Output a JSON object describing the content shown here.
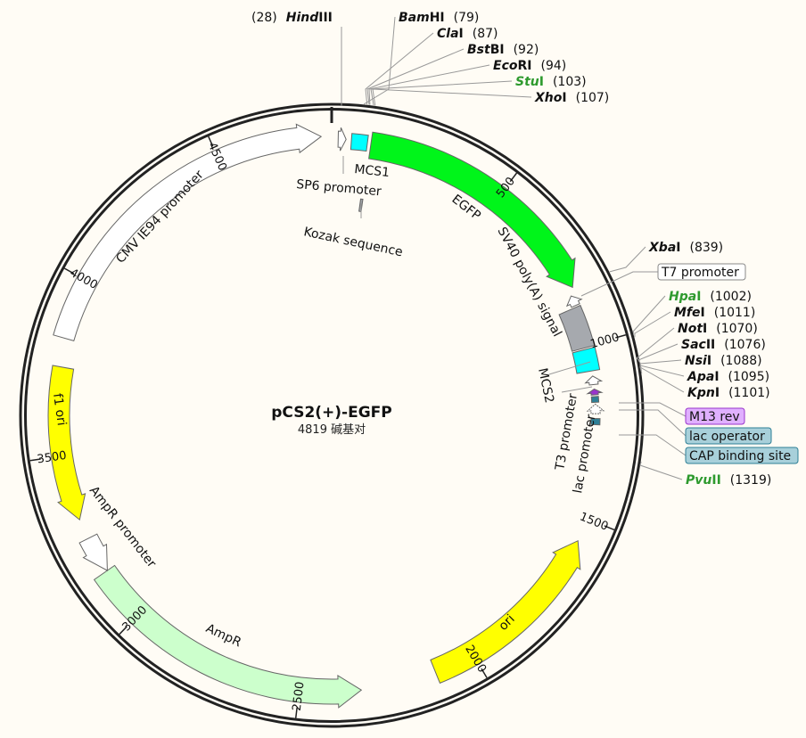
{
  "title": "pCS2(+)-EGFP",
  "length_label": "4819 碱基对",
  "total_bp": 4819,
  "ticks": [
    "500",
    "1000",
    "1500",
    "2000",
    "2500",
    "3000",
    "3500",
    "4000",
    "4500"
  ],
  "features": [
    {
      "label": "CMV IE94 promoter",
      "start": 3830,
      "end": 4790,
      "dir": "cw",
      "color": "#ffffff"
    },
    {
      "label": "SP6 promoter",
      "start": 18,
      "end": 40,
      "dir": "cw",
      "color": "#ffffff"
    },
    {
      "label": "MCS1",
      "start": 55,
      "end": 100,
      "dir": "none",
      "color": "#00ffff"
    },
    {
      "label": "Kozak sequence",
      "start": 102,
      "end": 110,
      "dir": "none",
      "color": "#a0a4a8"
    },
    {
      "label": "EGFP",
      "start": 110,
      "end": 830,
      "dir": "cw",
      "color": "#00f51a"
    },
    {
      "label": "T7 promoter",
      "start": 850,
      "end": 880,
      "dir": "ccw",
      "color": "#ffffff"
    },
    {
      "label": "SV40 poly(A) signal",
      "start": 885,
      "end": 1005,
      "dir": "none",
      "color": "#a6a9ae"
    },
    {
      "label": "MCS2",
      "start": 1010,
      "end": 1075,
      "dir": "none",
      "color": "#00ffff"
    },
    {
      "label": "T3 promoter",
      "start": 1090,
      "end": 1115,
      "dir": "ccw",
      "color": "#ffffff"
    },
    {
      "label": "M13 rev",
      "start": 1128,
      "end": 1145,
      "dir": "ccw",
      "color": "#9933cc"
    },
    {
      "label": "lac operator",
      "start": 1150,
      "end": 1167,
      "dir": "none",
      "color": "#2e7f96"
    },
    {
      "label": "lac promoter",
      "start": 1172,
      "end": 1200,
      "dir": "ccw",
      "color": "#ffffff"
    },
    {
      "label": "CAP binding site",
      "start": 1214,
      "end": 1232,
      "dir": "none",
      "color": "#2e7f96"
    },
    {
      "label": "ori",
      "start": 1566,
      "end": 2115,
      "dir": "ccw",
      "color": "#ffff00"
    },
    {
      "label": "AmpR",
      "start": 2327,
      "end": 3150,
      "dir": "ccw",
      "color": "#ccffcc"
    },
    {
      "label": "AmpR promoter",
      "start": 3150,
      "end": 3255,
      "dir": "ccw",
      "color": "#ffffff"
    },
    {
      "label": "f1 ori",
      "start": 3313,
      "end": 3750,
      "dir": "ccw",
      "color": "#ffff00"
    }
  ],
  "sites": [
    {
      "name": "Hind",
      "suffix": "III",
      "pos": "(28)",
      "bp": 28,
      "color": "#111111"
    },
    {
      "name": "Bam",
      "suffix": "HI",
      "pos": "(79)",
      "bp": 79,
      "color": "#111111"
    },
    {
      "name": "Cla",
      "suffix": "I",
      "pos": "(87)",
      "bp": 87,
      "color": "#111111"
    },
    {
      "name": "Bst",
      "suffix": "BI",
      "pos": "(92)",
      "bp": 92,
      "color": "#111111"
    },
    {
      "name": "Eco",
      "suffix": "RI",
      "pos": "(94)",
      "bp": 94,
      "color": "#111111"
    },
    {
      "name": "Stu",
      "suffix": "I",
      "pos": "(103)",
      "bp": 103,
      "color": "#2e9a2e"
    },
    {
      "name": "Xho",
      "suffix": "I",
      "pos": "(107)",
      "bp": 107,
      "color": "#111111"
    },
    {
      "name": "Xba",
      "suffix": "I",
      "pos": "(839)",
      "bp": 839,
      "color": "#111111"
    },
    {
      "name": "Hpa",
      "suffix": "I",
      "pos": "(1002)",
      "bp": 1002,
      "color": "#2e9a2e"
    },
    {
      "name": "Mfe",
      "suffix": "I",
      "pos": "(1011)",
      "bp": 1011,
      "color": "#111111"
    },
    {
      "name": "Not",
      "suffix": "I",
      "pos": "(1070)",
      "bp": 1070,
      "color": "#111111"
    },
    {
      "name": "Sac",
      "suffix": "II",
      "pos": "(1076)",
      "bp": 1076,
      "color": "#111111"
    },
    {
      "name": "Nsi",
      "suffix": "I",
      "pos": "(1088)",
      "bp": 1088,
      "color": "#111111"
    },
    {
      "name": "Apa",
      "suffix": "I",
      "pos": "(1095)",
      "bp": 1095,
      "color": "#111111"
    },
    {
      "name": "Kpn",
      "suffix": "I",
      "pos": "(1101)",
      "bp": 1101,
      "color": "#111111"
    },
    {
      "name": "Pvu",
      "suffix": "II",
      "pos": "(1319)",
      "bp": 1319,
      "color": "#2e9a2e"
    }
  ],
  "boxed_labels": [
    {
      "text": "T7 promoter",
      "bg": "#ffffff",
      "border": "#888888"
    },
    {
      "text": "M13 rev",
      "bg": "#e0b0ff",
      "border": "#9933cc"
    },
    {
      "text": "lac operator",
      "bg": "#a8d0da",
      "border": "#2e7f96"
    },
    {
      "text": "CAP binding site",
      "bg": "#a8d0da",
      "border": "#2e7f96"
    }
  ]
}
